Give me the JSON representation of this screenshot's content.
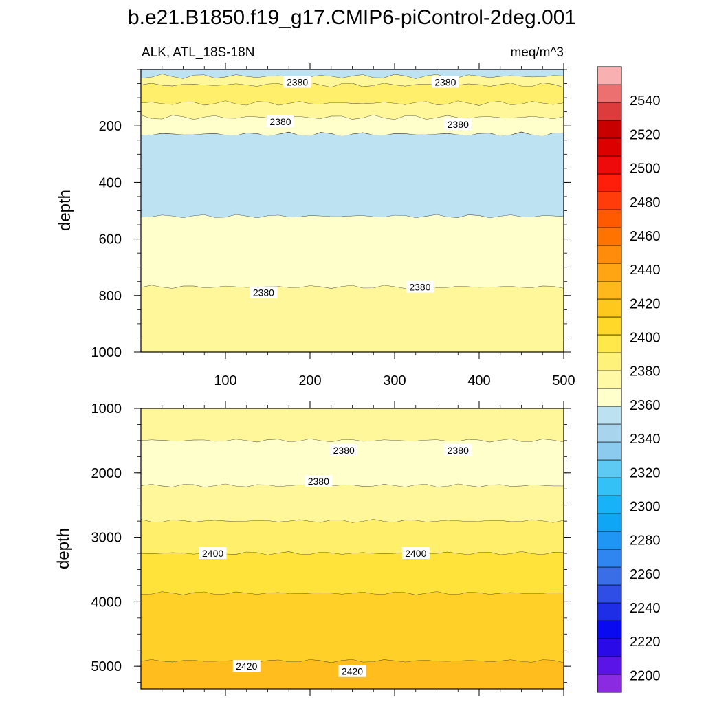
{
  "chart_data": {
    "type": "contour",
    "title": "b.e21.B1850.f19_g17.CMIP6-piControl-2deg.001",
    "variable_label": "ALK, ATL_18S-18N",
    "units_label": "meq/m^3",
    "ylabel": "depth",
    "xlim": [
      0,
      500
    ],
    "x_tick_labels": [
      "100",
      "200",
      "300",
      "400",
      "500"
    ],
    "panels": [
      {
        "name": "upper",
        "ylim": [
          0,
          1000
        ],
        "y_tick_labels": [
          "200",
          "400",
          "600",
          "800",
          "1000"
        ],
        "bands": [
          {
            "from_depth": 0,
            "to_depth": 25,
            "level": "2360-2370"
          },
          {
            "from_depth": 25,
            "to_depth": 55,
            "level": "2380-2390"
          },
          {
            "from_depth": 55,
            "to_depth": 120,
            "level": "2390-2400"
          },
          {
            "from_depth": 120,
            "to_depth": 170,
            "level": "2380-2390"
          },
          {
            "from_depth": 170,
            "to_depth": 230,
            "level": "2370-2380"
          },
          {
            "from_depth": 230,
            "to_depth": 520,
            "level": "2360-2370"
          },
          {
            "from_depth": 520,
            "to_depth": 770,
            "level": "2370-2380"
          },
          {
            "from_depth": 770,
            "to_depth": 1000,
            "level": "2380-2390"
          }
        ],
        "contour_labels": [
          {
            "text": "2380",
            "x": 185,
            "depth": 45
          },
          {
            "text": "2380",
            "x": 360,
            "depth": 45
          },
          {
            "text": "2380",
            "x": 165,
            "depth": 185
          },
          {
            "text": "2380",
            "x": 375,
            "depth": 195
          },
          {
            "text": "2380",
            "x": 145,
            "depth": 790
          },
          {
            "text": "2380",
            "x": 330,
            "depth": 770
          }
        ]
      },
      {
        "name": "lower",
        "ylim": [
          1000,
          5350
        ],
        "y_tick_labels": [
          "1000",
          "2000",
          "3000",
          "4000",
          "5000"
        ],
        "bands": [
          {
            "from_depth": 1000,
            "to_depth": 1500,
            "level": "2380-2390"
          },
          {
            "from_depth": 1500,
            "to_depth": 2200,
            "level": "2370-2380"
          },
          {
            "from_depth": 2200,
            "to_depth": 2750,
            "level": "2380-2390"
          },
          {
            "from_depth": 2750,
            "to_depth": 3250,
            "level": "2390-2400"
          },
          {
            "from_depth": 3250,
            "to_depth": 3870,
            "level": "2400-2410"
          },
          {
            "from_depth": 3870,
            "to_depth": 4920,
            "level": "2410-2420"
          },
          {
            "from_depth": 4920,
            "to_depth": 5350,
            "level": "2420-2430"
          }
        ],
        "contour_labels": [
          {
            "text": "2380",
            "x": 240,
            "depth": 1650
          },
          {
            "text": "2380",
            "x": 375,
            "depth": 1650
          },
          {
            "text": "2380",
            "x": 210,
            "depth": 2130
          },
          {
            "text": "2400",
            "x": 85,
            "depth": 3250
          },
          {
            "text": "2400",
            "x": 325,
            "depth": 3250
          },
          {
            "text": "2420",
            "x": 125,
            "depth": 5000
          },
          {
            "text": "2420",
            "x": 250,
            "depth": 5080
          }
        ]
      }
    ],
    "colorbar": {
      "min": 2190,
      "max": 2560,
      "step": 10,
      "tick_labels": [
        "2200",
        "2220",
        "2240",
        "2260",
        "2280",
        "2300",
        "2320",
        "2340",
        "2360",
        "2380",
        "2400",
        "2420",
        "2440",
        "2460",
        "2480",
        "2500",
        "2520",
        "2540"
      ],
      "colors": [
        "#8a2be2",
        "#5a14e8",
        "#2a0ae6",
        "#0a0af0",
        "#1e2ee6",
        "#2e4ee6",
        "#3a6ee6",
        "#2f86f0",
        "#1f96f4",
        "#10a6f6",
        "#18b2f8",
        "#34c2f6",
        "#5ccaf2",
        "#8ccaee",
        "#a8d4ee",
        "#bce2f2",
        "#ffffcc",
        "#fff9a6",
        "#fff27a",
        "#ffe84a",
        "#ffd829",
        "#ffc81c",
        "#ffb81b",
        "#ffa412",
        "#ff8c0a",
        "#ff7400",
        "#ff5a00",
        "#ff3c0a",
        "#ff1e0a",
        "#ee0a0a",
        "#dc0000",
        "#c80000",
        "#dc3c3c",
        "#ec7070",
        "#f8b0b0"
      ]
    },
    "level_colors": {
      "2360-2370": "#bde2f2",
      "2370-2380": "#ffffcc",
      "2380-2390": "#fff79a",
      "2390-2400": "#ffef6a",
      "2400-2410": "#ffe23a",
      "2410-2420": "#ffd028",
      "2420-2430": "#ffbe1e"
    }
  }
}
